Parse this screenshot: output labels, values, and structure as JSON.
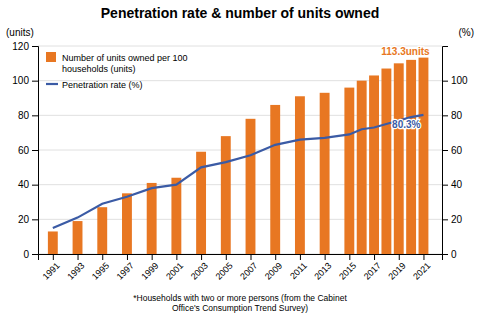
{
  "chart_data": {
    "type": "bar",
    "title": "Penetration rate & number of units owned",
    "ylabel": "(units)",
    "y2label": "(%)",
    "x": [
      1991,
      1993,
      1995,
      1997,
      1999,
      2001,
      2003,
      2005,
      2007,
      2009,
      2011,
      2013,
      2015,
      2016,
      2017,
      2018,
      2019,
      2020,
      2021
    ],
    "series": [
      {
        "name": "Number of units owned per 100\nhouseholds (units)",
        "type": "bar",
        "color": "#E87722",
        "values": [
          13,
          19,
          27,
          35,
          41,
          44,
          59,
          68,
          78,
          86,
          91,
          93,
          96,
          100,
          103,
          107,
          110,
          112,
          113.3
        ]
      },
      {
        "name": "Penetration rate (%)",
        "type": "line",
        "axis": "y2",
        "color": "#3B5BA5",
        "values": [
          15,
          21,
          29,
          33,
          38,
          40,
          50,
          53,
          57,
          63,
          66,
          67,
          69,
          72,
          73,
          75,
          77,
          79,
          80.3
        ]
      }
    ],
    "xlim": [
      1989.8,
      2022.5
    ],
    "xticks": [
      1991,
      1993,
      1995,
      1997,
      1999,
      2001,
      2003,
      2005,
      2007,
      2009,
      2011,
      2013,
      2015,
      2017,
      2019,
      2021
    ],
    "ylim": [
      0,
      120
    ],
    "yticks": [
      0,
      20,
      40,
      60,
      80,
      100,
      120
    ],
    "y2lim": [
      0,
      120
    ],
    "y2ticks": [
      0,
      20,
      40,
      60,
      80,
      100
    ],
    "grid": true,
    "legend": "upper left",
    "annotations": [
      {
        "text": "113.3units",
        "x": 2021.5,
        "y": 113.3,
        "color": "#E87722"
      },
      {
        "text": "80.3%",
        "x": 2021,
        "y": 80.3,
        "axis": "y2",
        "color": "#3B5BA5"
      }
    ],
    "footnote": "*Households with two or more persons (from the Cabinet\nOffice's Consumption Trend Survey)"
  }
}
